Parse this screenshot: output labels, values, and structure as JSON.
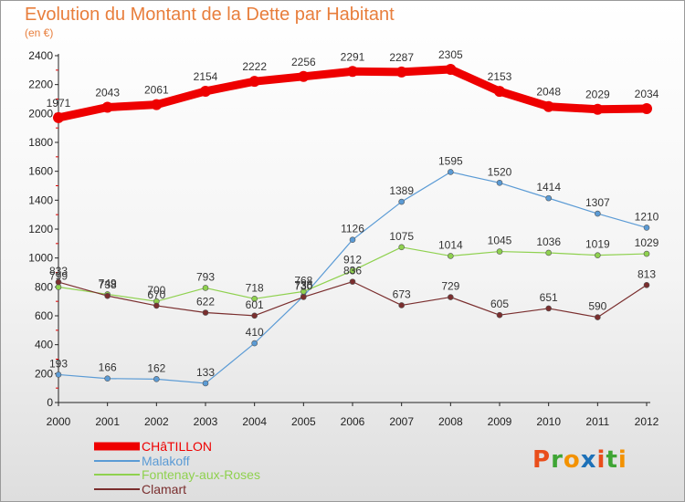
{
  "chart_data": {
    "type": "line",
    "title": "Evolution du Montant de la Dette par Habitant",
    "subtitle": "(en €)",
    "categories": [
      "2000",
      "2001",
      "2002",
      "2003",
      "2004",
      "2005",
      "2006",
      "2007",
      "2008",
      "2009",
      "2010",
      "2011",
      "2012"
    ],
    "ylim": [
      0,
      2400
    ],
    "yticks": [
      0,
      200,
      400,
      600,
      800,
      1000,
      1200,
      1400,
      1600,
      1800,
      2000,
      2200,
      2400
    ],
    "grid": false,
    "legend_position": "bottom-left",
    "series": [
      {
        "name": "CHâTILLON",
        "color": "#ee0000",
        "values": [
          1971,
          2043,
          2061,
          2154,
          2222,
          2256,
          2291,
          2287,
          2305,
          2153,
          2048,
          2029,
          2034
        ]
      },
      {
        "name": "Malakoff",
        "color": "#5b9bd5",
        "values": [
          193,
          166,
          162,
          133,
          410,
          736,
          1126,
          1389,
          1595,
          1520,
          1414,
          1307,
          1210
        ]
      },
      {
        "name": "Fontenay-aux-Roses",
        "color": "#8fd14f",
        "values": [
          799,
          749,
          700,
          793,
          718,
          768,
          912,
          1075,
          1014,
          1045,
          1036,
          1019,
          1029
        ]
      },
      {
        "name": "Clamart",
        "color": "#7a2e2e",
        "values": [
          833,
          738,
          670,
          622,
          601,
          730,
          836,
          673,
          729,
          605,
          651,
          590,
          813
        ]
      }
    ]
  },
  "logo": {
    "letters": [
      "P",
      "r",
      "o",
      "x",
      "i",
      "t",
      "i"
    ],
    "colors": [
      "#e94e1b",
      "#3fa535",
      "#f39200",
      "#1d71b8",
      "#e94e1b",
      "#3fa535",
      "#f39200"
    ]
  }
}
